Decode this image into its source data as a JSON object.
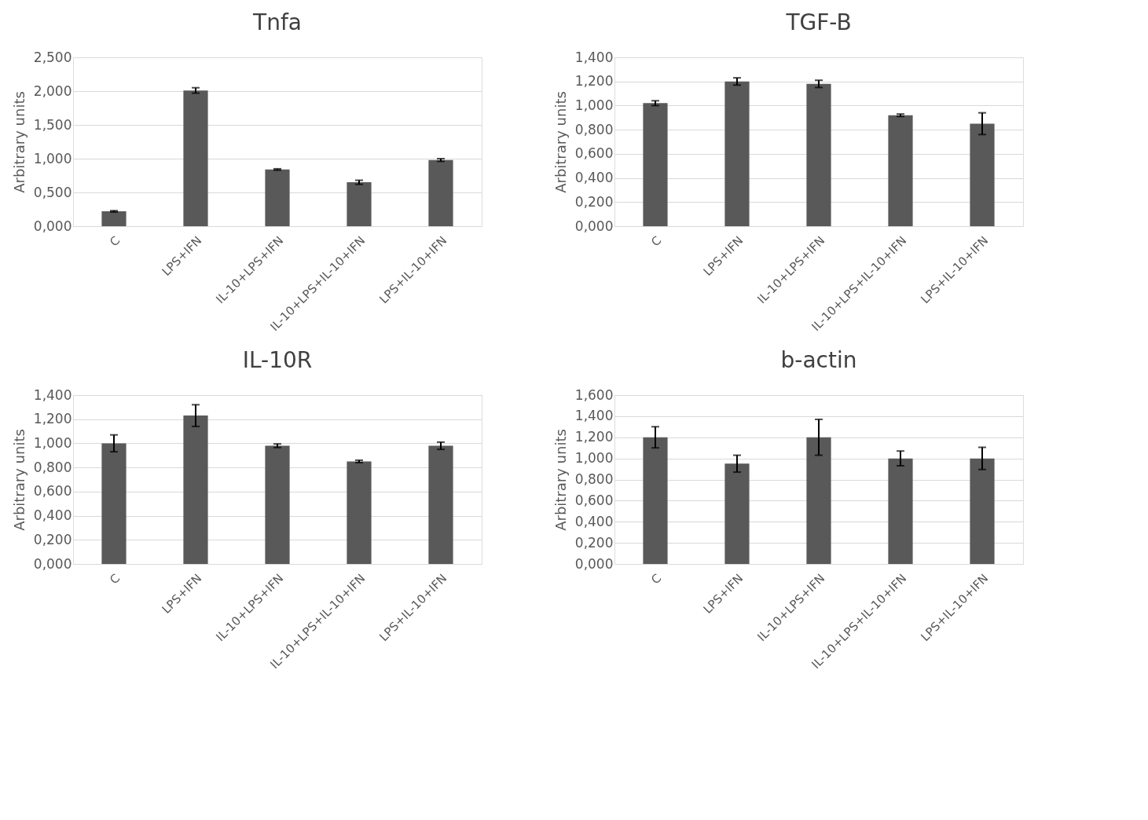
{
  "chart_data": [
    {
      "type": "bar",
      "title": "Tnfa",
      "ylabel": "Arbitrary units",
      "categories": [
        "C",
        "LPS+IFN",
        "IL-10+LPS+IFN",
        "IL-10+LPS+IL-10+IFN",
        "LPS+IL-10+IFN"
      ],
      "values": [
        0.22,
        2.01,
        0.84,
        0.65,
        0.98
      ],
      "errors": [
        0.01,
        0.04,
        0.01,
        0.03,
        0.02
      ],
      "color": "#595959",
      "ylim": [
        0,
        2.5
      ],
      "yticks": [
        {
          "value": 0,
          "label": "0,000"
        },
        {
          "value": 0.5,
          "label": "0,500"
        },
        {
          "value": 1,
          "label": "1,000"
        },
        {
          "value": 1.5,
          "label": "1,500"
        },
        {
          "value": 2,
          "label": "2,000"
        },
        {
          "value": 2.5,
          "label": "2,500"
        }
      ],
      "grid": "y"
    },
    {
      "type": "bar",
      "title": "TGF-B",
      "ylabel": "Arbitrary units",
      "categories": [
        "C",
        "LPS+IFN",
        "IL-10+LPS+IFN",
        "IL-10+LPS+IL-10+IFN",
        "LPS+IL-10+IFN"
      ],
      "values": [
        1.02,
        1.2,
        1.18,
        0.92,
        0.85
      ],
      "errors": [
        0.02,
        0.03,
        0.03,
        0.01,
        0.09
      ],
      "color": "#595959",
      "ylim": [
        0,
        1.4
      ],
      "yticks": [
        {
          "value": 0,
          "label": "0,000"
        },
        {
          "value": 0.2,
          "label": "0,200"
        },
        {
          "value": 0.4,
          "label": "0,400"
        },
        {
          "value": 0.6,
          "label": "0,600"
        },
        {
          "value": 0.8,
          "label": "0,800"
        },
        {
          "value": 1,
          "label": "1,000"
        },
        {
          "value": 1.2,
          "label": "1,200"
        },
        {
          "value": 1.4,
          "label": "1,400"
        }
      ],
      "grid": "y"
    },
    {
      "type": "bar",
      "title": "IL-10R",
      "ylabel": "Arbitrary units",
      "categories": [
        "C",
        "LPS+IFN",
        "IL-10+LPS+IFN",
        "IL-10+LPS+IL-10+IFN",
        "LPS+IL-10+IFN"
      ],
      "values": [
        1.0,
        1.23,
        0.98,
        0.85,
        0.98
      ],
      "errors": [
        0.07,
        0.09,
        0.015,
        0.01,
        0.03
      ],
      "color": "#595959",
      "ylim": [
        0,
        1.4
      ],
      "yticks": [
        {
          "value": 0,
          "label": "0,000"
        },
        {
          "value": 0.2,
          "label": "0,200"
        },
        {
          "value": 0.4,
          "label": "0,400"
        },
        {
          "value": 0.6,
          "label": "0,600"
        },
        {
          "value": 0.8,
          "label": "0,800"
        },
        {
          "value": 1,
          "label": "1,000"
        },
        {
          "value": 1.2,
          "label": "1,200"
        },
        {
          "value": 1.4,
          "label": "1,400"
        }
      ],
      "grid": "y"
    },
    {
      "type": "bar",
      "title": "b-actin",
      "ylabel": "Arbitrary units",
      "categories": [
        "C",
        "LPS+IFN",
        "IL-10+LPS+IFN",
        "IL-10+LPS+IL-10+IFN",
        "LPS+IL-10+IFN"
      ],
      "values": [
        1.2,
        0.95,
        1.2,
        1.0,
        1.0
      ],
      "errors": [
        0.1,
        0.08,
        0.17,
        0.07,
        0.105
      ],
      "color": "#595959",
      "ylim": [
        0,
        1.6
      ],
      "yticks": [
        {
          "value": 0,
          "label": "0,000"
        },
        {
          "value": 0.2,
          "label": "0,200"
        },
        {
          "value": 0.4,
          "label": "0,400"
        },
        {
          "value": 0.6,
          "label": "0,600"
        },
        {
          "value": 0.8,
          "label": "0,800"
        },
        {
          "value": 1,
          "label": "1,000"
        },
        {
          "value": 1.2,
          "label": "1,200"
        },
        {
          "value": 1.4,
          "label": "1,400"
        },
        {
          "value": 1.6,
          "label": "1,600"
        }
      ],
      "grid": "y"
    }
  ]
}
